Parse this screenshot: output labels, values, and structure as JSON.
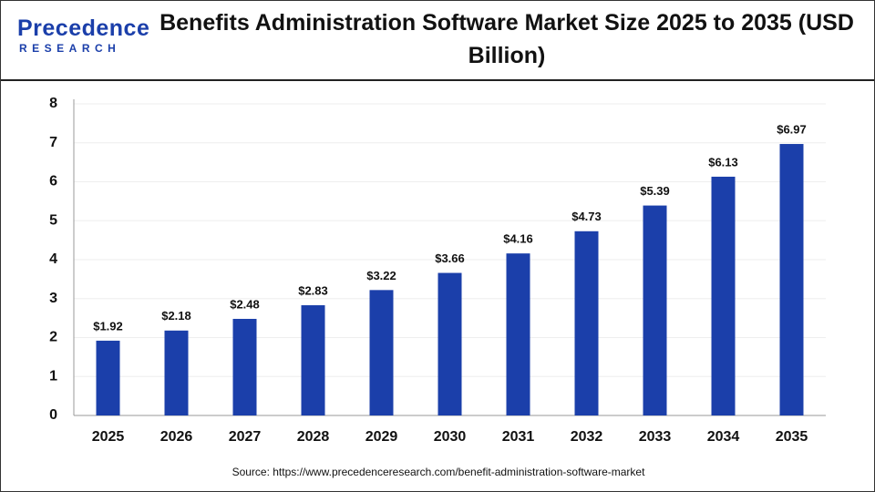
{
  "logo": {
    "name": "Precedence",
    "tagline": "RESEARCH"
  },
  "chart_data": {
    "type": "bar",
    "title": "Benefits Administration Software Market Size 2025 to 2035 (USD Billion)",
    "categories": [
      "2025",
      "2026",
      "2027",
      "2028",
      "2029",
      "2030",
      "2031",
      "2032",
      "2033",
      "2034",
      "2035"
    ],
    "values": [
      1.92,
      2.18,
      2.48,
      2.83,
      3.22,
      3.66,
      4.16,
      4.73,
      5.39,
      6.13,
      6.97
    ],
    "value_labels": [
      "$1.92",
      "$2.18",
      "$2.48",
      "$2.83",
      "$3.22",
      "$3.66",
      "$4.16",
      "$4.73",
      "$5.39",
      "$6.13",
      "$6.97"
    ],
    "color": "#1b3faa",
    "ylim": [
      0,
      8
    ],
    "yticks": [
      0,
      1,
      2,
      3,
      4,
      5,
      6,
      7,
      8
    ],
    "grid": true,
    "source": "Source: https://www.precedenceresearch.com/benefit-administration-software-market"
  }
}
